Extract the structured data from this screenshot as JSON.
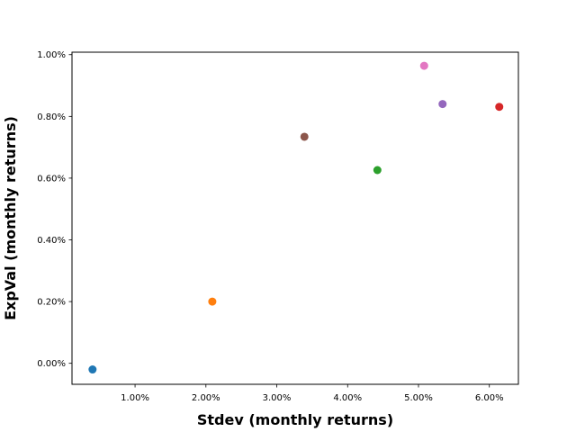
{
  "chart_data": {
    "type": "scatter",
    "title": "",
    "xlabel": "Stdev (monthly returns)",
    "ylabel": "ExpVal (monthly returns)",
    "xlim": [
      0.0011,
      0.0641
    ],
    "ylim": [
      -0.00068,
      0.01008
    ],
    "x_ticks": [
      0.01,
      0.02,
      0.03,
      0.04,
      0.05,
      0.06
    ],
    "x_tick_labels": [
      "1.00%",
      "2.00%",
      "3.00%",
      "4.00%",
      "5.00%",
      "6.00%"
    ],
    "y_ticks": [
      0.0,
      0.002,
      0.004,
      0.006,
      0.008,
      0.01
    ],
    "y_tick_labels": [
      "0.00%",
      "0.20%",
      "0.40%",
      "0.60%",
      "0.80%",
      "1.00%"
    ],
    "grid": false,
    "legend": "none",
    "points": [
      {
        "x": 0.004,
        "y": -0.0002,
        "color": "#1f77b4"
      },
      {
        "x": 0.0209,
        "y": 0.002,
        "color": "#ff7f0e"
      },
      {
        "x": 0.0442,
        "y": 0.00626,
        "color": "#2ca02c"
      },
      {
        "x": 0.0614,
        "y": 0.00831,
        "color": "#d62728"
      },
      {
        "x": 0.0534,
        "y": 0.0084,
        "color": "#9467bd"
      },
      {
        "x": 0.0339,
        "y": 0.00734,
        "color": "#8c564b"
      },
      {
        "x": 0.0508,
        "y": 0.00964,
        "color": "#e377c2"
      }
    ]
  }
}
